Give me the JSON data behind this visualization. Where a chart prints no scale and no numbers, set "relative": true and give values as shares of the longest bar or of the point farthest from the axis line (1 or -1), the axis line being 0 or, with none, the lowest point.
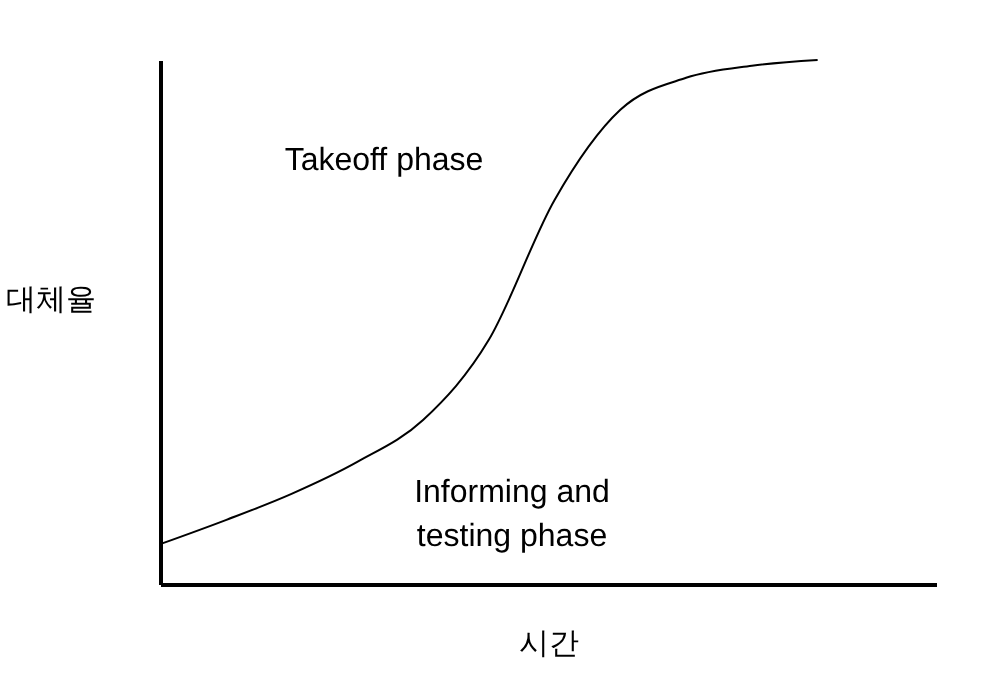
{
  "chart_data": {
    "type": "line",
    "relative": true,
    "xlabel": "시간",
    "ylabel": "대체율",
    "categories": [
      null,
      null,
      null,
      null,
      null,
      null,
      null,
      null,
      null,
      null,
      null
    ],
    "series": [
      {
        "color": "#000000",
        "values": [
          0.076,
          0.122,
          0.172,
          0.233,
          0.313,
          0.466,
          0.733,
          0.905,
          0.966,
          0.989,
          1.0
        ]
      }
    ],
    "annotations": [
      "Takeoff phase",
      "Informing and testing phase"
    ]
  }
}
